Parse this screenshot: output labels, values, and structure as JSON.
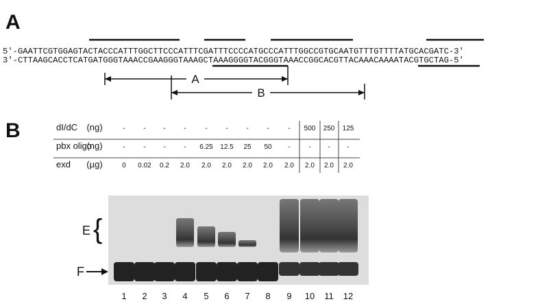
{
  "panel_a": {
    "label": "A",
    "seq_top": "5'-GAATTCGTGGAGTACTACCCATTTGGCTTCCCATTTCGATTTCCCCATGCCCATTTGGCCGTGCAATGTTTGTTTTATGCACGATC-3'",
    "seq_bottom": "3'-CTTAAGCACCTCATGATGGGTAAACCGAAGGGTAAAGCTAAAGGGGTACGGGTAAACCGGCACGTTACAAACAAAATACGTGCTAG-5'",
    "range_a": "A",
    "range_b": "B"
  },
  "panel_b": {
    "label": "B",
    "table": {
      "rows": [
        [
          "dI/dC",
          "(ng)",
          "-",
          "-",
          "-",
          "-",
          "-",
          "-",
          "-",
          "-",
          "-",
          "500",
          "250",
          "125"
        ],
        [
          "pbx oligo",
          "(ng)",
          "-",
          "-",
          "-",
          "-",
          "6.25",
          "12.5",
          "25",
          "50",
          "-",
          "-",
          "-",
          "-"
        ],
        [
          "exd",
          "(µg)",
          "0",
          "0.02",
          "0.2",
          "2.0",
          "2.0",
          "2.0",
          "2.0",
          "2.0",
          "2.0",
          "2.0",
          "2.0",
          "2.0"
        ]
      ]
    },
    "band_labels": [
      "E",
      "F"
    ],
    "lanes": [
      "1",
      "2",
      "3",
      "4",
      "5",
      "6",
      "7",
      "8",
      "9",
      "10",
      "11",
      "12"
    ]
  }
}
